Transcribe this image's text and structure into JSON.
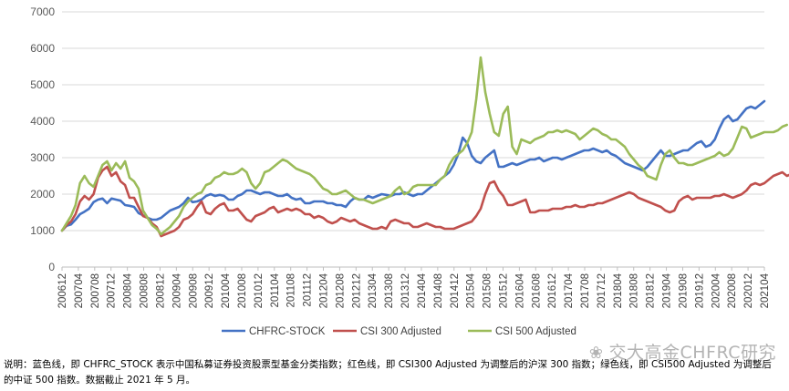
{
  "chart_data": {
    "type": "line",
    "ylim": [
      0,
      7000
    ],
    "yticks": [
      0,
      1000,
      2000,
      3000,
      4000,
      5000,
      6000,
      7000
    ],
    "grid": "horizontal",
    "legend_position": "bottom",
    "xlabel": "",
    "ylabel": "",
    "tick_labels": [
      "200612",
      "200704",
      "200708",
      "200712",
      "200804",
      "200808",
      "200812",
      "200904",
      "200908",
      "200912",
      "201004",
      "201008",
      "201012",
      "201104",
      "201108",
      "201112",
      "201204",
      "201208",
      "201212",
      "201304",
      "201308",
      "201312",
      "201404",
      "201408",
      "201412",
      "201504",
      "201508",
      "201512",
      "201604",
      "201608",
      "201612",
      "201704",
      "201708",
      "201712",
      "201804",
      "201808",
      "201812",
      "201904",
      "201908",
      "201912",
      "202004",
      "202008",
      "202012",
      "202104"
    ],
    "series": [
      {
        "name": "CHFRC-STOCK",
        "color": "#4472C4",
        "values": [
          1000,
          1130,
          1170,
          1300,
          1450,
          1520,
          1600,
          1780,
          1850,
          1880,
          1750,
          1880,
          1850,
          1820,
          1700,
          1680,
          1650,
          1480,
          1420,
          1350,
          1300,
          1300,
          1350,
          1450,
          1550,
          1600,
          1650,
          1750,
          1900,
          1780,
          1800,
          1850,
          1950,
          2000,
          1950,
          1980,
          1950,
          1850,
          1850,
          1950,
          2000,
          2100,
          2100,
          2050,
          2000,
          2050,
          2050,
          2000,
          1950,
          1950,
          2000,
          1900,
          1850,
          1880,
          1750,
          1750,
          1800,
          1800,
          1800,
          1750,
          1750,
          1700,
          1700,
          1650,
          1800,
          1900,
          1850,
          1850,
          1950,
          1900,
          1950,
          2000,
          1980,
          1950,
          2000,
          2000,
          2050,
          2000,
          1950,
          2000,
          2000,
          2100,
          2200,
          2300,
          2400,
          2500,
          2600,
          2800,
          3100,
          3550,
          3400,
          3050,
          2900,
          2850,
          3000,
          3100,
          3200,
          2750,
          2750,
          2800,
          2850,
          2800,
          2850,
          2900,
          2950,
          2950,
          3000,
          2900,
          2950,
          3000,
          3000,
          2950,
          3000,
          3050,
          3100,
          3150,
          3200,
          3200,
          3250,
          3200,
          3150,
          3200,
          3100,
          3050,
          2950,
          2850,
          2800,
          2750,
          2700,
          2650,
          2750,
          2900,
          3050,
          3200,
          3050,
          3050,
          3100,
          3150,
          3200,
          3200,
          3300,
          3400,
          3450,
          3300,
          3350,
          3500,
          3800,
          4050,
          4150,
          4000,
          4050,
          4200,
          4350,
          4400,
          4350,
          4450,
          4550
        ]
      },
      {
        "name": "CSI 300 Adjusted",
        "color": "#C0504D",
        "values": [
          1000,
          1150,
          1250,
          1450,
          1800,
          1950,
          1850,
          2000,
          2450,
          2650,
          2750,
          2500,
          2600,
          2350,
          2250,
          1900,
          1900,
          1650,
          1400,
          1350,
          1200,
          1100,
          850,
          900,
          950,
          1000,
          1100,
          1300,
          1350,
          1450,
          1650,
          1800,
          1500,
          1450,
          1600,
          1700,
          1750,
          1550,
          1550,
          1600,
          1450,
          1300,
          1250,
          1400,
          1450,
          1500,
          1600,
          1650,
          1500,
          1550,
          1600,
          1550,
          1600,
          1550,
          1450,
          1450,
          1350,
          1400,
          1350,
          1250,
          1200,
          1250,
          1350,
          1300,
          1250,
          1300,
          1200,
          1150,
          1100,
          1050,
          1050,
          1100,
          1050,
          1250,
          1300,
          1250,
          1200,
          1200,
          1100,
          1100,
          1150,
          1200,
          1150,
          1100,
          1100,
          1050,
          1050,
          1050,
          1100,
          1150,
          1200,
          1250,
          1400,
          1600,
          2000,
          2300,
          2350,
          2100,
          1950,
          1700,
          1700,
          1750,
          1800,
          1850,
          1500,
          1500,
          1550,
          1550,
          1550,
          1600,
          1600,
          1600,
          1650,
          1650,
          1700,
          1650,
          1650,
          1700,
          1700,
          1750,
          1750,
          1800,
          1850,
          1900,
          1950,
          2000,
          2050,
          2000,
          1900,
          1850,
          1800,
          1750,
          1700,
          1650,
          1550,
          1500,
          1550,
          1800,
          1900,
          1950,
          1850,
          1900,
          1900,
          1900,
          1900,
          1950,
          1950,
          2000,
          1950,
          1900,
          1950,
          2000,
          2100,
          2250,
          2300,
          2250,
          2300,
          2400,
          2500,
          2550,
          2600,
          2500,
          2550,
          2600
        ]
      },
      {
        "name": "CSI 500 Adjusted",
        "color": "#9BBB59",
        "values": [
          1000,
          1200,
          1400,
          1700,
          2300,
          2500,
          2300,
          2200,
          2500,
          2800,
          2900,
          2650,
          2850,
          2700,
          2900,
          2450,
          2350,
          2150,
          1550,
          1350,
          1150,
          1050,
          900,
          1000,
          1100,
          1250,
          1400,
          1650,
          1800,
          1900,
          2000,
          2050,
          2250,
          2300,
          2450,
          2500,
          2600,
          2550,
          2550,
          2600,
          2700,
          2600,
          2300,
          2150,
          2300,
          2600,
          2650,
          2750,
          2850,
          2950,
          2900,
          2800,
          2700,
          2650,
          2600,
          2550,
          2450,
          2300,
          2150,
          2100,
          2000,
          2000,
          2050,
          2100,
          2000,
          1900,
          1850,
          1850,
          1800,
          1750,
          1800,
          1850,
          1900,
          1950,
          2100,
          2200,
          2000,
          2050,
          2200,
          2250,
          2250,
          2250,
          2250,
          2250,
          2400,
          2500,
          2800,
          3000,
          3100,
          3200,
          3400,
          3700,
          4600,
          5750,
          4800,
          4200,
          3700,
          3600,
          4200,
          4400,
          3300,
          3100,
          3500,
          3450,
          3400,
          3500,
          3550,
          3600,
          3700,
          3700,
          3750,
          3700,
          3750,
          3700,
          3650,
          3500,
          3600,
          3700,
          3800,
          3750,
          3650,
          3600,
          3500,
          3500,
          3400,
          3300,
          3100,
          2950,
          2800,
          2700,
          2500,
          2450,
          2400,
          2800,
          3100,
          3200,
          3000,
          2850,
          2850,
          2800,
          2800,
          2850,
          2900,
          2950,
          3000,
          3050,
          3150,
          3050,
          3100,
          3250,
          3550,
          3850,
          3800,
          3550,
          3600,
          3650,
          3700,
          3700,
          3700,
          3750,
          3850,
          3900
        ]
      }
    ]
  },
  "note": "说明：蓝色线，即 CHFRC_STOCK 表示中国私募证券投资股票型基金分类指数；红色线，即 CSI300 Adjusted 为调整后的沪深 300 指数；绿色线，即 CSI500 Adjusted 为调整后的中证 500 指数。数据截止 2021 年 5 月。",
  "watermark": "交大高金CHFRC研究",
  "watermark_icon": "wechat-icon"
}
